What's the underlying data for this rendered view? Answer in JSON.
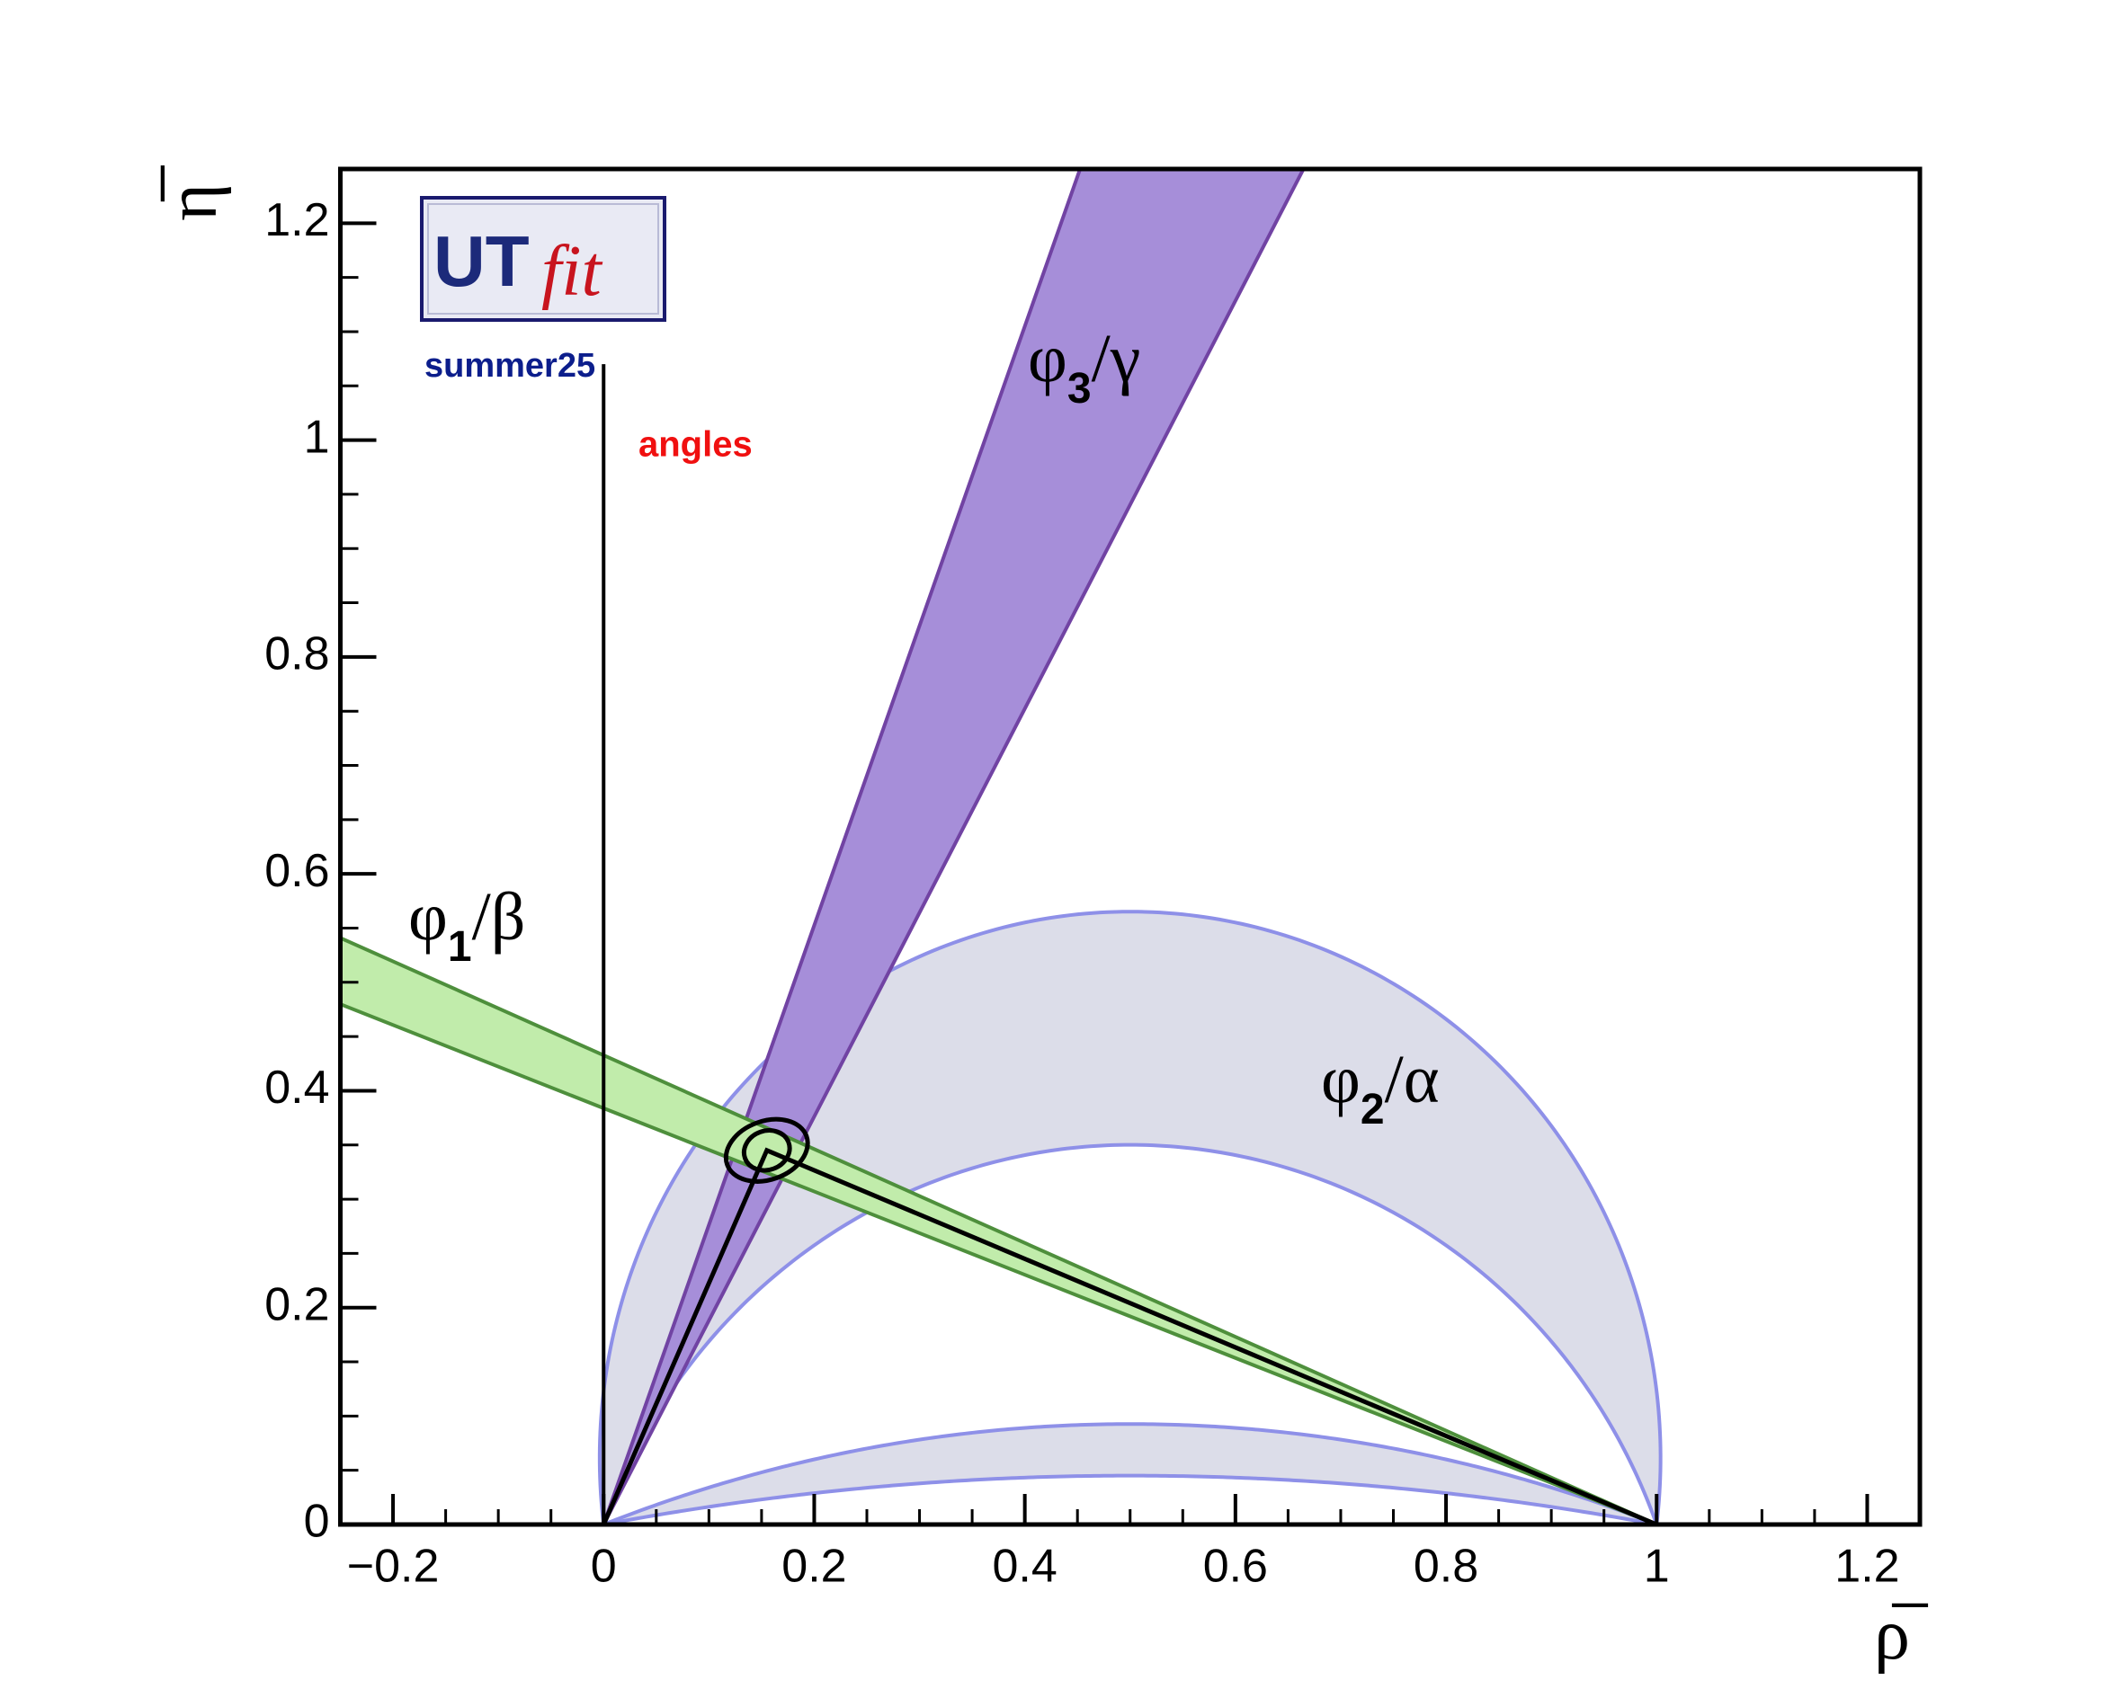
{
  "chart_data": {
    "type": "utfit",
    "xlabel": "ρ̅",
    "ylabel": "η̅",
    "xlim": [
      -0.25,
      1.25
    ],
    "ylim": [
      0,
      1.25
    ],
    "xticks": [
      {
        "value": -0.2,
        "label": "−0.2"
      },
      0,
      0.2,
      0.4,
      0.6,
      0.8,
      1,
      1.2
    ],
    "yticks": [
      0,
      0.2,
      0.4,
      0.6,
      0.8,
      1,
      1.2
    ],
    "logo": {
      "main": "UT",
      "sub": "fit"
    },
    "edition": "summer25",
    "tag": "angles",
    "annotations": [
      {
        "symbol": "φ",
        "sub": "1",
        "tail": "/β"
      },
      {
        "symbol": "φ",
        "sub": "3",
        "tail": "/γ"
      },
      {
        "symbol": "φ",
        "sub": "2",
        "tail": "/α"
      }
    ],
    "alpha_deg": [
      [
        83,
        110
      ],
      [
        159,
        169.7
      ]
    ],
    "alpha_color": "#dcdde9",
    "alpha_edge": "#8e90e8",
    "beta_deg": [
      21.0,
      23.4
    ],
    "beta_color": "#c1ecab",
    "beta_edge": "#4e8f3c",
    "gamma_deg": [
      62.0,
      70.1
    ],
    "gamma_color": "#a68ed9",
    "gamma_edge": "#7143a3",
    "apex": [
      0.155,
      0.345
    ],
    "contours": [
      {
        "rx": 0.022,
        "ry": 0.018,
        "rotation": -20
      },
      {
        "rx": 0.04,
        "ry": 0.027,
        "rotation": -20
      }
    ],
    "x0_line_top": 1.07
  }
}
